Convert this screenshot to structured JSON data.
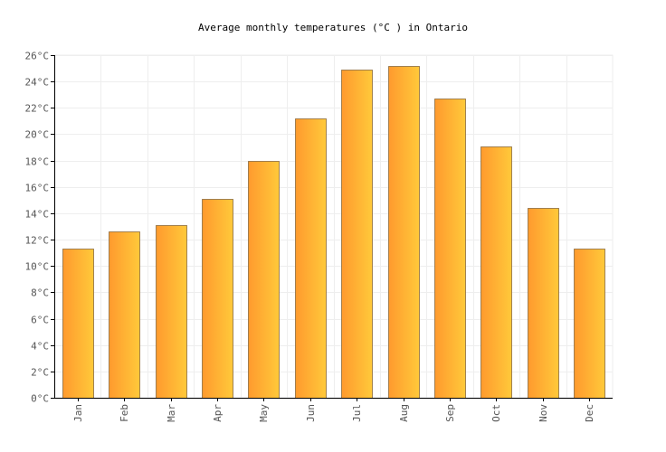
{
  "chart_data": {
    "type": "bar",
    "title": "Average monthly temperatures (°C ) in Ontario",
    "xlabel": "",
    "ylabel": "",
    "categories": [
      "Jan",
      "Feb",
      "Mar",
      "Apr",
      "May",
      "Jun",
      "Jul",
      "Aug",
      "Sep",
      "Oct",
      "Nov",
      "Dec"
    ],
    "values": [
      11.3,
      12.6,
      13.1,
      15.1,
      18.0,
      21.2,
      24.9,
      25.2,
      22.7,
      19.1,
      14.4,
      11.3
    ],
    "ylim": [
      0,
      26
    ],
    "yticks": [
      0,
      2,
      4,
      6,
      8,
      10,
      12,
      14,
      16,
      18,
      20,
      22,
      24,
      26
    ],
    "ytick_suffix": "°C",
    "grid": true,
    "legend": "none",
    "colors": {
      "bar_left": "#ff9a2e",
      "bar_right": "#ffc93a",
      "bar_stroke": "#8a6a3c",
      "grid": "#eeeeee",
      "axis": "#000000",
      "tick_text": "#555555"
    }
  }
}
